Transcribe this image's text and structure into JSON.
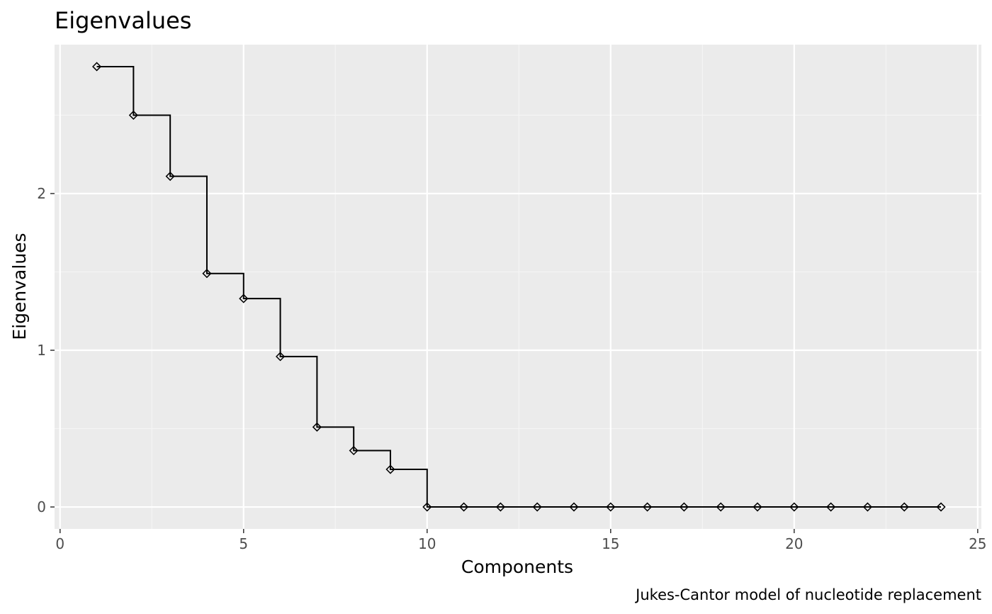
{
  "colors": {
    "panel_background": "#ebebeb",
    "grid_major": "#ffffff",
    "grid_minor": "#f5f5f5",
    "line": "#000000",
    "tick_text": "#4d4d4d",
    "text": "#000000"
  },
  "chart_data": {
    "type": "line",
    "line_style": "step",
    "marker": "open-diamond",
    "title": "Eigenvalues",
    "xlabel": "Components",
    "ylabel": "Eigenvalues",
    "caption": "Jukes-Cantor model of nucleotide replacement",
    "xlim": [
      -0.15,
      25.1
    ],
    "ylim": [
      -0.14,
      2.95
    ],
    "x_ticks": [
      0,
      5,
      10,
      15,
      20,
      25
    ],
    "x_tick_labels": [
      "0",
      "5",
      "10",
      "15",
      "20",
      "25"
    ],
    "y_ticks": [
      0,
      1,
      2
    ],
    "y_tick_labels": [
      "0",
      "1",
      "2"
    ],
    "grid": true,
    "legend": "none",
    "x": [
      1,
      2,
      3,
      4,
      5,
      6,
      7,
      8,
      9,
      10,
      11,
      12,
      13,
      14,
      15,
      16,
      17,
      18,
      19,
      20,
      21,
      22,
      23,
      24
    ],
    "y": [
      2.81,
      2.5,
      2.11,
      1.49,
      1.33,
      0.96,
      0.51,
      0.36,
      0.24,
      0,
      0,
      0,
      0,
      0,
      0,
      0,
      0,
      0,
      0,
      0,
      0,
      0,
      0,
      0
    ]
  }
}
